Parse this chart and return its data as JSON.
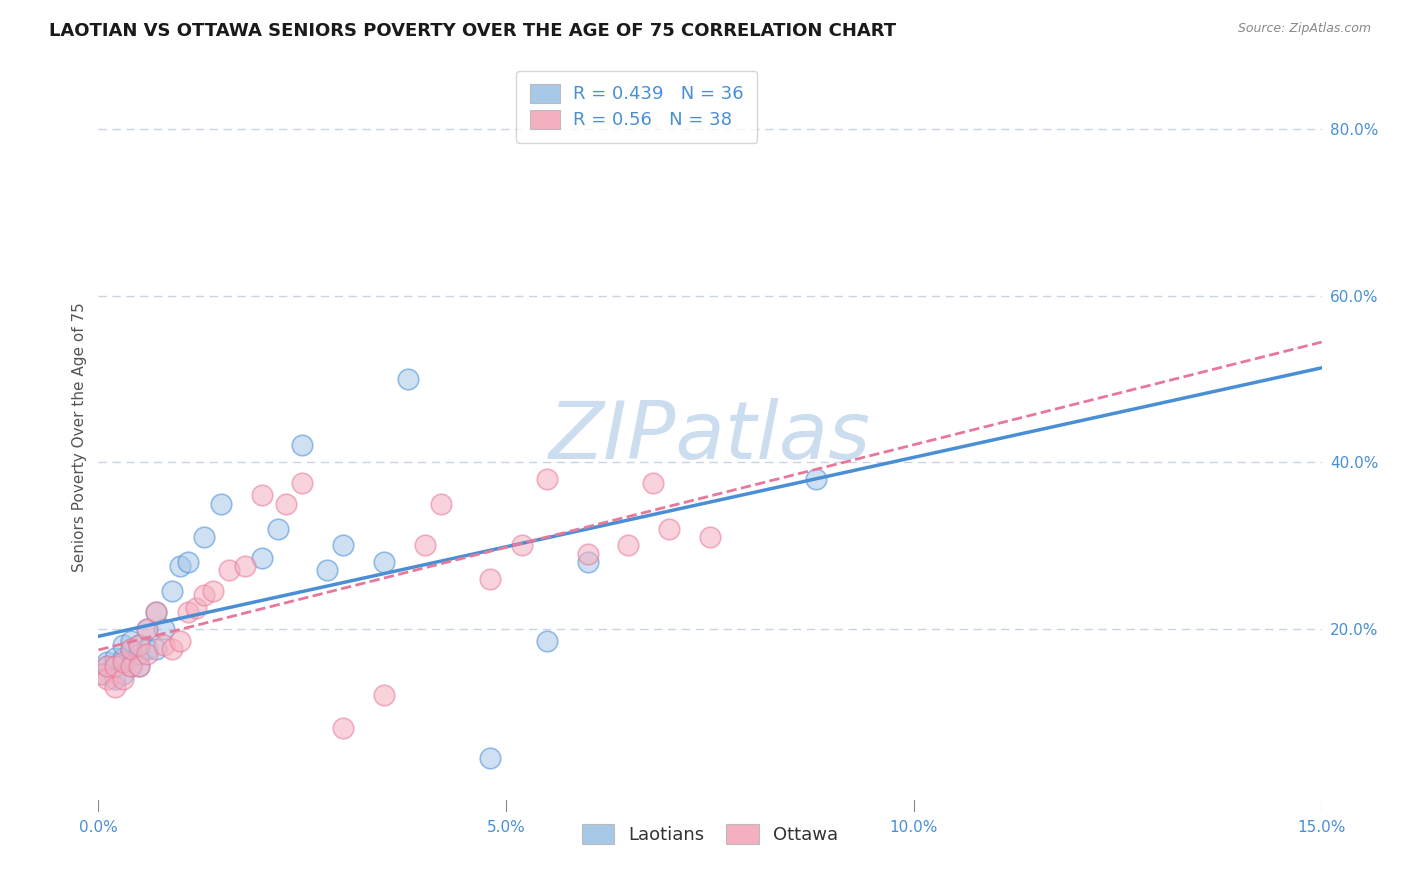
{
  "title": "LAOTIAN VS OTTAWA SENIORS POVERTY OVER THE AGE OF 75 CORRELATION CHART",
  "source": "Source: ZipAtlas.com",
  "ylabel": "Seniors Poverty Over the Age of 75",
  "xlim": [
    0.0,
    0.15
  ],
  "ylim": [
    -0.02,
    0.88
  ],
  "xticks": [
    0.0,
    0.05,
    0.1,
    0.15
  ],
  "xtick_labels": [
    "0.0%",
    "5.0%",
    "10.0%",
    "15.0%"
  ],
  "ytick_labels": [
    "20.0%",
    "40.0%",
    "60.0%",
    "80.0%"
  ],
  "yticks": [
    0.2,
    0.4,
    0.6,
    0.8
  ],
  "laotian_color": "#a8c8e8",
  "ottawa_color": "#f4b0c0",
  "laotian_line_color": "#4a8fd4",
  "ottawa_line_color": "#e8789a",
  "legend_text_color": "#4a8fd4",
  "watermark_color": "#ccddf0",
  "laotian_R": 0.439,
  "laotian_N": 36,
  "ottawa_R": 0.56,
  "ottawa_N": 38,
  "laotian_x": [
    0.0005,
    0.001,
    0.001,
    0.002,
    0.002,
    0.002,
    0.003,
    0.003,
    0.003,
    0.004,
    0.004,
    0.004,
    0.005,
    0.005,
    0.005,
    0.006,
    0.006,
    0.007,
    0.007,
    0.008,
    0.009,
    0.01,
    0.011,
    0.013,
    0.015,
    0.02,
    0.022,
    0.025,
    0.028,
    0.03,
    0.035,
    0.038,
    0.048,
    0.055,
    0.06,
    0.088
  ],
  "laotian_y": [
    0.145,
    0.155,
    0.16,
    0.14,
    0.155,
    0.165,
    0.145,
    0.165,
    0.18,
    0.155,
    0.175,
    0.185,
    0.155,
    0.17,
    0.18,
    0.175,
    0.2,
    0.175,
    0.22,
    0.2,
    0.245,
    0.275,
    0.28,
    0.31,
    0.35,
    0.285,
    0.32,
    0.42,
    0.27,
    0.3,
    0.28,
    0.5,
    0.045,
    0.185,
    0.28,
    0.38
  ],
  "ottawa_x": [
    0.0005,
    0.001,
    0.001,
    0.002,
    0.002,
    0.003,
    0.003,
    0.004,
    0.004,
    0.005,
    0.005,
    0.006,
    0.006,
    0.007,
    0.008,
    0.009,
    0.01,
    0.011,
    0.012,
    0.013,
    0.014,
    0.016,
    0.018,
    0.02,
    0.023,
    0.025,
    0.03,
    0.035,
    0.04,
    0.042,
    0.048,
    0.052,
    0.055,
    0.06,
    0.065,
    0.068,
    0.07,
    0.075
  ],
  "ottawa_y": [
    0.145,
    0.14,
    0.155,
    0.13,
    0.155,
    0.14,
    0.16,
    0.155,
    0.175,
    0.155,
    0.18,
    0.17,
    0.2,
    0.22,
    0.18,
    0.175,
    0.185,
    0.22,
    0.225,
    0.24,
    0.245,
    0.27,
    0.275,
    0.36,
    0.35,
    0.375,
    0.08,
    0.12,
    0.3,
    0.35,
    0.26,
    0.3,
    0.38,
    0.29,
    0.3,
    0.375,
    0.32,
    0.31
  ],
  "background_color": "#ffffff",
  "grid_color": "#c8d4e4",
  "marker_size": 220,
  "marker_alpha": 0.55,
  "title_fontsize": 13,
  "axis_label_fontsize": 11,
  "tick_fontsize": 11,
  "legend_fontsize": 12
}
